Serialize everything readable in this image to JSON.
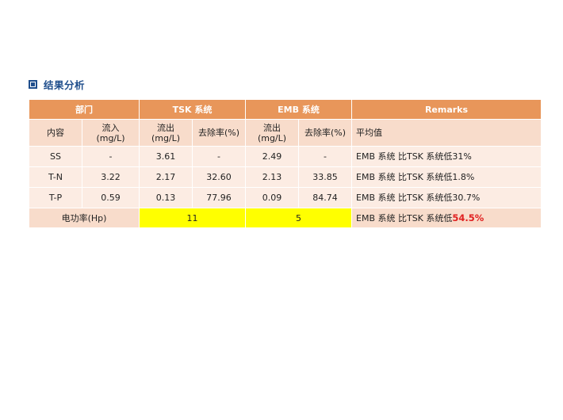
{
  "heading": "结果分析",
  "table": {
    "group_headers": {
      "dept": "部门",
      "tsk": "TSK 系统",
      "emb": "EMB 系统",
      "remarks": "Remarks"
    },
    "sub_headers": {
      "content": "内容",
      "inflow_line1": "流入",
      "inflow_line2": "(mg/L)",
      "tsk_out_line1": "流出",
      "tsk_out_line2": "(mg/L)",
      "tsk_removal": "去除率(%)",
      "emb_out_line1": "流出",
      "emb_out_line2": "(mg/L)",
      "emb_removal": "去除率(%)",
      "remarks": "平均值"
    },
    "rows": [
      {
        "item": "SS",
        "inflow": "-",
        "tsk_out": "3.61",
        "tsk_removal": "-",
        "emb_out": "2.49",
        "emb_removal": "-",
        "remark": "EMB 系统 比TSK 系统低31%"
      },
      {
        "item": "T-N",
        "inflow": "3.22",
        "tsk_out": "2.17",
        "tsk_removal": "32.60",
        "emb_out": "2.13",
        "emb_removal": "33.85",
        "remark": "EMB 系统 比TSK 系统低1.8%"
      },
      {
        "item": "T-P",
        "inflow": "0.59",
        "tsk_out": "0.13",
        "tsk_removal": "77.96",
        "emb_out": "0.09",
        "emb_removal": "84.74",
        "remark": "EMB 系统 比TSK 系统低30.7%"
      }
    ],
    "power_row": {
      "label": "电功率(Hp)",
      "tsk": "11",
      "emb": "5",
      "remark_prefix": "EMB 系统 比TSK 系统低",
      "remark_highlight": "54.5%"
    }
  },
  "colors": {
    "header_bg": "#e8965a",
    "subheader_bg": "#f8dccb",
    "row_bg": "#fcece3",
    "highlight_yellow": "#ffff00",
    "highlight_red": "#e02020",
    "heading_blue": "#1f4e8c"
  }
}
